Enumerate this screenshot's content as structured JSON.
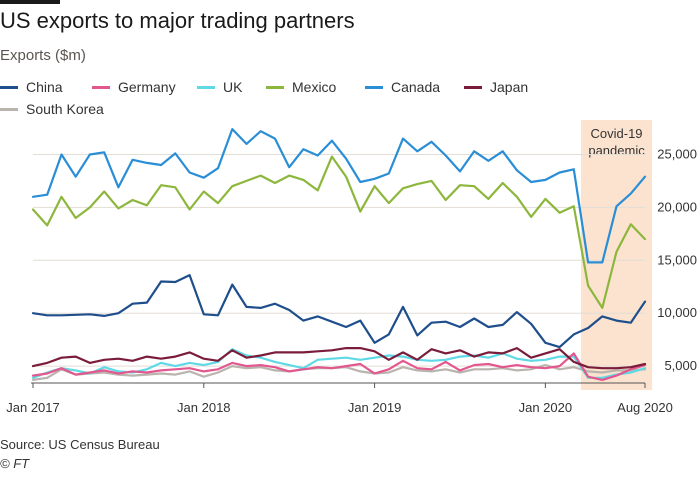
{
  "header": {
    "title": "US exports to major trading partners",
    "subtitle": "Exports ($m)"
  },
  "footer": {
    "source": "Source: US Census Bureau",
    "credit": "© FT"
  },
  "chart_data": {
    "type": "line",
    "title": "US exports to major trading partners",
    "ylabel": "Exports ($m)",
    "xlabel": "",
    "ylim": [
      3500,
      27500
    ],
    "y_ticks": [
      5000,
      10000,
      15000,
      20000,
      25000
    ],
    "y_tick_labels": [
      "5,000",
      "10,000",
      "15,000",
      "20,000",
      "25,000"
    ],
    "x_tick_labels": [
      {
        "index": 0,
        "label": "Jan 2017"
      },
      {
        "index": 12,
        "label": "Jan 2018"
      },
      {
        "index": 24,
        "label": "Jan 2019"
      },
      {
        "index": 36,
        "label": "Jan 2020"
      },
      {
        "index": 43,
        "label": "Aug 2020"
      }
    ],
    "grid": true,
    "legend_position": "top-left",
    "categories": [
      "Jan 2017",
      "Feb 2017",
      "Mar 2017",
      "Apr 2017",
      "May 2017",
      "Jun 2017",
      "Jul 2017",
      "Aug 2017",
      "Sep 2017",
      "Oct 2017",
      "Nov 2017",
      "Dec 2017",
      "Jan 2018",
      "Feb 2018",
      "Mar 2018",
      "Apr 2018",
      "May 2018",
      "Jun 2018",
      "Jul 2018",
      "Aug 2018",
      "Sep 2018",
      "Oct 2018",
      "Nov 2018",
      "Dec 2018",
      "Jan 2019",
      "Feb 2019",
      "Mar 2019",
      "Apr 2019",
      "May 2019",
      "Jun 2019",
      "Jul 2019",
      "Aug 2019",
      "Sep 2019",
      "Oct 2019",
      "Nov 2019",
      "Dec 2019",
      "Jan 2020",
      "Feb 2020",
      "Mar 2020",
      "Apr 2020",
      "May 2020",
      "Jun 2020",
      "Jul 2020",
      "Aug 2020"
    ],
    "annotation": {
      "label_line1": "Covid-19",
      "label_line2": "pandemic",
      "start_index": 38.5,
      "end_index": 43.5,
      "color": "#fbe3cf"
    },
    "series": [
      {
        "name": "China",
        "color": "#1f4e8c",
        "values": [
          10000,
          9800,
          9800,
          9850,
          9900,
          9750,
          10000,
          10900,
          11000,
          13000,
          12950,
          13600,
          9900,
          9800,
          12700,
          10600,
          10500,
          10900,
          10300,
          9300,
          9700,
          9200,
          8700,
          9300,
          7200,
          8000,
          10600,
          7900,
          9100,
          9200,
          8700,
          9500,
          8700,
          8900,
          10100,
          9000,
          7200,
          6800,
          8000,
          8600,
          9700,
          9300,
          9100,
          11100
        ]
      },
      {
        "name": "Germany",
        "color": "#e2588e",
        "values": [
          4100,
          4300,
          4800,
          4200,
          4400,
          4600,
          4300,
          4500,
          4400,
          4600,
          4700,
          4800,
          4500,
          4700,
          5300,
          5000,
          5100,
          4900,
          4500,
          4700,
          4900,
          4800,
          5000,
          5200,
          4300,
          4700,
          5500,
          4800,
          4700,
          5400,
          4600,
          5100,
          5200,
          4900,
          5100,
          4900,
          4800,
          5000,
          6200,
          4000,
          3700,
          4100,
          4700,
          5100
        ]
      },
      {
        "name": "UK",
        "color": "#5fd9e6",
        "values": [
          3900,
          4400,
          4800,
          4600,
          4300,
          4900,
          4500,
          4400,
          4700,
          5300,
          5000,
          5300,
          5100,
          5400,
          6600,
          6000,
          5800,
          5400,
          5100,
          4800,
          5600,
          5700,
          5800,
          5600,
          5800,
          6000,
          5900,
          5600,
          5500,
          5600,
          5900,
          6000,
          5800,
          6200,
          5700,
          5500,
          5600,
          5900,
          5900,
          3900,
          3900,
          4200,
          4400,
          4800
        ]
      },
      {
        "name": "Mexico",
        "color": "#8db63c",
        "values": [
          19800,
          18300,
          21000,
          19000,
          20000,
          21500,
          19900,
          20700,
          20200,
          22100,
          21900,
          19800,
          21500,
          20400,
          22000,
          22500,
          23000,
          22300,
          23000,
          22600,
          21600,
          24800,
          22900,
          19600,
          22000,
          20400,
          21800,
          22200,
          22500,
          20700,
          22100,
          22000,
          20800,
          22300,
          21000,
          19100,
          20800,
          19500,
          20100,
          12600,
          10500,
          15800,
          18400,
          17000
        ]
      },
      {
        "name": "Canada",
        "color": "#2a8ed6",
        "values": [
          21000,
          21200,
          25000,
          22900,
          25000,
          25200,
          21900,
          24500,
          24200,
          24000,
          25100,
          23300,
          22800,
          23700,
          27400,
          26000,
          27200,
          26500,
          23800,
          25500,
          24900,
          26300,
          24600,
          22400,
          22700,
          23200,
          26500,
          25300,
          26200,
          24900,
          23400,
          25300,
          24400,
          25300,
          23500,
          22400,
          22600,
          23300,
          23600,
          14800,
          14800,
          20100,
          21300,
          22900
        ]
      },
      {
        "name": "Japan",
        "color": "#7a1c3a",
        "values": [
          5000,
          5300,
          5800,
          5900,
          5300,
          5600,
          5700,
          5500,
          5900,
          5700,
          5900,
          6300,
          5700,
          5500,
          6500,
          5800,
          6000,
          6300,
          6300,
          6300,
          6400,
          6500,
          6700,
          6700,
          6400,
          5600,
          6300,
          5600,
          6600,
          6200,
          6500,
          5900,
          6300,
          6200,
          6700,
          5800,
          6200,
          6600,
          5400,
          4900,
          4800,
          4800,
          4900,
          5200
        ]
      },
      {
        "name": "South Korea",
        "color": "#b9b4ad",
        "values": [
          3700,
          3900,
          4700,
          4200,
          4300,
          4400,
          4200,
          4100,
          4200,
          4300,
          4200,
          4500,
          4000,
          4400,
          5000,
          4800,
          4900,
          4600,
          4500,
          4700,
          4800,
          4800,
          4900,
          4500,
          4300,
          4400,
          4900,
          4600,
          4500,
          4700,
          4400,
          4700,
          4700,
          4800,
          4600,
          4700,
          5100,
          4700,
          4900,
          4500,
          4400,
          4600,
          4600,
          4700
        ]
      }
    ]
  }
}
